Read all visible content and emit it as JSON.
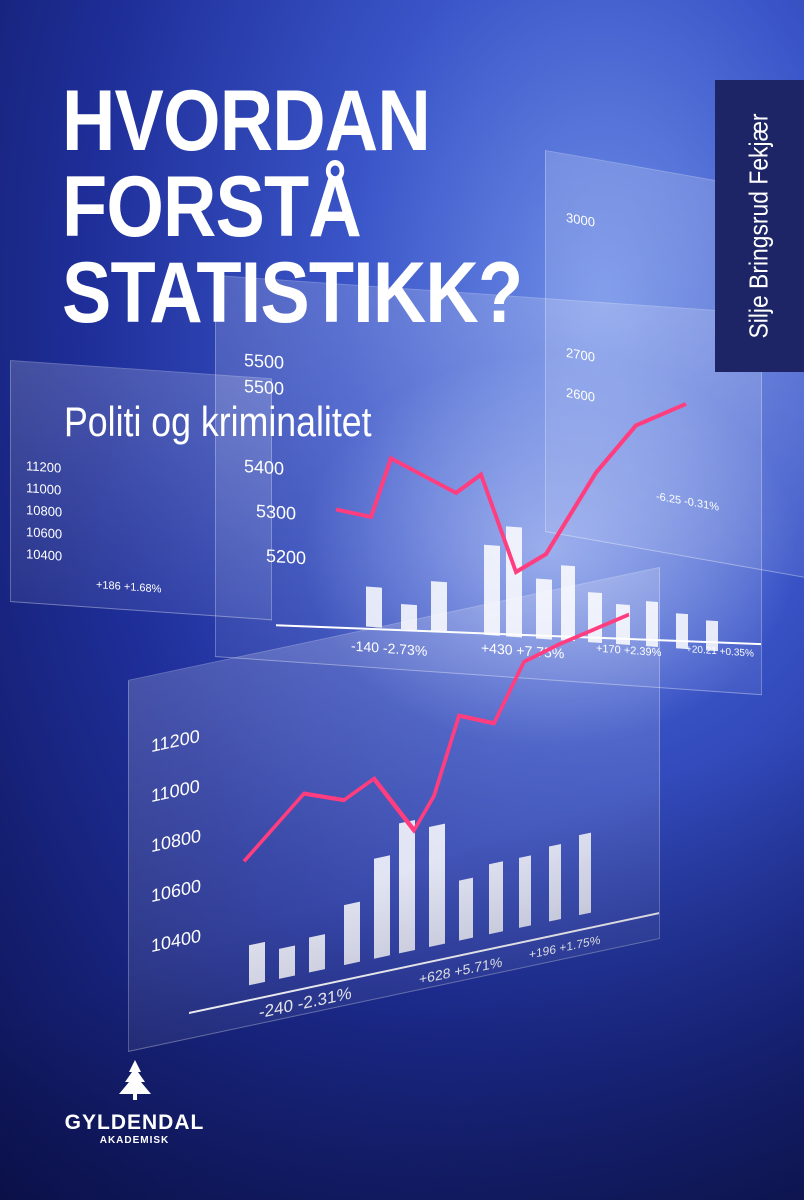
{
  "cover": {
    "title_lines": [
      "HVORDAN",
      "FORSTÅ",
      "STATISTIKK?"
    ],
    "subtitle": "Politi og kriminalitet",
    "author": "Silje Bringsrud Fekjær",
    "publisher": {
      "name": "GYLDENDAL",
      "imprint": "AKADEMISK",
      "logo_icon": "spruce-tree-icon"
    }
  },
  "colors": {
    "accent_line": "#ff3d7f",
    "author_box": "#1d2566",
    "text": "#ffffff"
  },
  "background_panels": {
    "front": {
      "ticks": [
        "11200",
        "11000",
        "10800",
        "10600",
        "10400"
      ],
      "annotations": [
        "-240 -2.31%",
        "+628 +5.71%",
        "+196 +1.75%"
      ]
    },
    "middle": {
      "ticks": [
        "5500",
        "5500",
        "5400",
        "5300",
        "5200"
      ],
      "annotations": [
        "-140 -2.73%",
        "+430 +7.75%",
        "+170 +2.39%",
        "+20.21 +0.35%"
      ]
    },
    "left": {
      "ticks": [
        "11200",
        "11000",
        "10800",
        "10600",
        "10400"
      ],
      "annotations": [
        "+186 +1.68%"
      ]
    },
    "right": {
      "ticks": [
        "3000",
        "2700",
        "2600"
      ],
      "annotations": [
        "-6.25 -0.31%"
      ]
    }
  }
}
